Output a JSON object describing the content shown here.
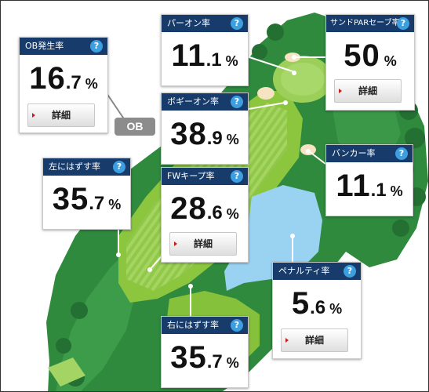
{
  "cards": {
    "ob": {
      "label": "OB発生率",
      "int": "16",
      "dec": ".7",
      "unit": "%",
      "button": "詳細"
    },
    "par_on": {
      "label": "パーオン率",
      "int": "11",
      "dec": ".1",
      "unit": "%"
    },
    "sand_save": {
      "label": "サンドPARセーブ率",
      "int": "50",
      "dec": "",
      "unit": "%",
      "button": "詳細"
    },
    "bogey_on": {
      "label": "ボギーオン率",
      "int": "38",
      "dec": ".9",
      "unit": "%"
    },
    "bunker": {
      "label": "バンカー率",
      "int": "11",
      "dec": ".1",
      "unit": "%"
    },
    "left_miss": {
      "label": "左にはずす率",
      "int": "35",
      "dec": ".7",
      "unit": "%"
    },
    "fw_keep": {
      "label": "FWキープ率",
      "int": "28",
      "dec": ".6",
      "unit": "%",
      "button": "詳細"
    },
    "penalty": {
      "label": "ペナルティ率",
      "int": "5",
      "dec": ".6",
      "unit": "%",
      "button": "詳細"
    },
    "right_miss": {
      "label": "右にはずす率",
      "int": "35",
      "dec": ".7",
      "unit": "%"
    }
  },
  "help_symbol": "?",
  "ob_badge": "OB",
  "icons": [
    "help-icon",
    "red-triangle-arrow-icon"
  ],
  "colors": {
    "header": "#173c6b",
    "help": "#3d9fe0",
    "rough": "#2f8a3e",
    "fairway": "#8cc63f",
    "water": "#9ad3f2",
    "bunker": "#f5e3c2"
  }
}
